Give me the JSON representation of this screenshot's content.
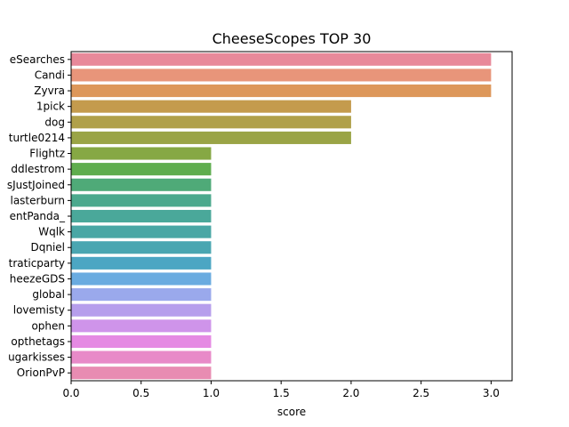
{
  "chart_data": {
    "type": "bar",
    "orientation": "horizontal",
    "title": "CheeseScopes TOP 30",
    "xlabel": "score",
    "ylabel": "",
    "xlim": [
      0,
      3.15
    ],
    "x_ticks": [
      "0.0",
      "0.5",
      "1.0",
      "1.5",
      "2.0",
      "2.5",
      "3.0"
    ],
    "grid": false,
    "categories": [
      "eSearches",
      "Candi",
      "Zyvra",
      "1pick",
      "dog",
      "turtle0214",
      "Flightz",
      "ddlestrom",
      "sJustJoined",
      "lasterburn",
      "entPanda_",
      "Wqlk",
      "Dqniel",
      "traticparty",
      "heezeGDS",
      "global",
      "lovemisty",
      "ophen",
      "opthetags",
      "ugarkisses",
      "OrionPvP"
    ],
    "values": [
      3,
      3,
      3,
      2,
      2,
      2,
      1,
      1,
      1,
      1,
      1,
      1,
      1,
      1,
      1,
      1,
      1,
      1,
      1,
      1,
      1
    ],
    "colors": [
      "#e8899a",
      "#e8957a",
      "#dd975a",
      "#c49b4d",
      "#b0a04a",
      "#9aa446",
      "#86a844",
      "#5fad4e",
      "#4faa78",
      "#4ba98d",
      "#4aa89a",
      "#49a7a5",
      "#4aa6b1",
      "#4ca6c3",
      "#6aabe0",
      "#9aa9ec",
      "#b69eec",
      "#cf94ea",
      "#e58ae3",
      "#e88ac8",
      "#e88cb2"
    ]
  }
}
